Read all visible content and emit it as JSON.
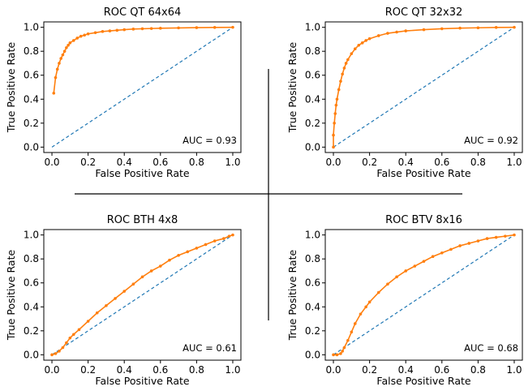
{
  "chart_data": [
    {
      "type": "line",
      "title": "ROC QT 64x64",
      "xlabel": "False Positive Rate",
      "ylabel": "True Positive Rate",
      "xlim": [
        0,
        1
      ],
      "ylim": [
        0,
        1
      ],
      "xticks": [
        "0.0",
        "0.2",
        "0.4",
        "0.6",
        "0.8",
        "1.0"
      ],
      "yticks": [
        "0.0",
        "0.2",
        "0.4",
        "0.6",
        "0.8",
        "1.0"
      ],
      "annotation": "AUC = 0.93",
      "colors": {
        "roc": "#ff7f0e",
        "chance": "#1f77b4"
      },
      "roc": {
        "x": [
          0.01,
          0.02,
          0.03,
          0.04,
          0.05,
          0.06,
          0.07,
          0.08,
          0.09,
          0.1,
          0.12,
          0.14,
          0.16,
          0.18,
          0.2,
          0.24,
          0.28,
          0.32,
          0.36,
          0.4,
          0.45,
          0.5,
          0.55,
          0.6,
          0.7,
          0.8,
          0.9,
          1.0
        ],
        "y": [
          0.45,
          0.58,
          0.65,
          0.7,
          0.74,
          0.77,
          0.8,
          0.83,
          0.85,
          0.87,
          0.89,
          0.91,
          0.925,
          0.935,
          0.945,
          0.955,
          0.965,
          0.97,
          0.975,
          0.98,
          0.985,
          0.988,
          0.99,
          0.992,
          0.995,
          0.997,
          0.999,
          1.0
        ]
      },
      "chance": {
        "x": [
          0,
          1
        ],
        "y": [
          0,
          1
        ]
      }
    },
    {
      "type": "line",
      "title": "ROC QT 32x32",
      "xlabel": "False Positive Rate",
      "ylabel": "True Positive Rate",
      "xlim": [
        0,
        1
      ],
      "ylim": [
        0,
        1
      ],
      "xticks": [
        "0.0",
        "0.2",
        "0.4",
        "0.6",
        "0.8",
        "1.0"
      ],
      "yticks": [
        "0.0",
        "0.2",
        "0.4",
        "0.6",
        "0.8",
        "1.0"
      ],
      "annotation": "AUC = 0.92",
      "colors": {
        "roc": "#ff7f0e",
        "chance": "#1f77b4"
      },
      "roc": {
        "x": [
          0.0,
          0.0,
          0.005,
          0.01,
          0.015,
          0.02,
          0.03,
          0.04,
          0.05,
          0.06,
          0.07,
          0.08,
          0.1,
          0.12,
          0.14,
          0.16,
          0.18,
          0.2,
          0.25,
          0.3,
          0.35,
          0.4,
          0.5,
          0.6,
          0.7,
          0.8,
          0.9,
          1.0
        ],
        "y": [
          0.0,
          0.1,
          0.2,
          0.28,
          0.35,
          0.4,
          0.48,
          0.55,
          0.61,
          0.66,
          0.7,
          0.73,
          0.78,
          0.82,
          0.85,
          0.87,
          0.89,
          0.905,
          0.93,
          0.95,
          0.96,
          0.97,
          0.98,
          0.988,
          0.993,
          0.996,
          0.999,
          1.0
        ]
      },
      "chance": {
        "x": [
          0,
          1
        ],
        "y": [
          0,
          1
        ]
      }
    },
    {
      "type": "line",
      "title": "ROC BTH 4x8",
      "xlabel": "False Positive Rate",
      "ylabel": "True Positive Rate",
      "xlim": [
        0,
        1
      ],
      "ylim": [
        0,
        1
      ],
      "xticks": [
        "0.0",
        "0.2",
        "0.4",
        "0.6",
        "0.8",
        "1.0"
      ],
      "yticks": [
        "0.0",
        "0.2",
        "0.4",
        "0.6",
        "0.8",
        "1.0"
      ],
      "annotation": "AUC = 0.61",
      "colors": {
        "roc": "#ff7f0e",
        "chance": "#1f77b4"
      },
      "roc": {
        "x": [
          0.0,
          0.02,
          0.04,
          0.06,
          0.08,
          0.1,
          0.12,
          0.15,
          0.2,
          0.25,
          0.3,
          0.35,
          0.4,
          0.45,
          0.5,
          0.55,
          0.6,
          0.65,
          0.7,
          0.75,
          0.8,
          0.85,
          0.9,
          0.95,
          0.98,
          1.0
        ],
        "y": [
          0.0,
          0.01,
          0.03,
          0.06,
          0.1,
          0.14,
          0.17,
          0.21,
          0.28,
          0.35,
          0.41,
          0.47,
          0.53,
          0.59,
          0.65,
          0.7,
          0.74,
          0.79,
          0.83,
          0.86,
          0.89,
          0.92,
          0.95,
          0.97,
          0.99,
          1.0
        ]
      },
      "chance": {
        "x": [
          0,
          1
        ],
        "y": [
          0,
          1
        ]
      }
    },
    {
      "type": "line",
      "title": "ROC BTV 8x16",
      "xlabel": "False Positive Rate",
      "ylabel": "True Positive Rate",
      "xlim": [
        0,
        1
      ],
      "ylim": [
        0,
        1
      ],
      "xticks": [
        "0.0",
        "0.2",
        "0.4",
        "0.6",
        "0.8",
        "1.0"
      ],
      "yticks": [
        "0.0",
        "0.2",
        "0.4",
        "0.6",
        "0.8",
        "1.0"
      ],
      "annotation": "AUC = 0.68",
      "colors": {
        "roc": "#ff7f0e",
        "chance": "#1f77b4"
      },
      "roc": {
        "x": [
          0.0,
          0.02,
          0.04,
          0.05,
          0.06,
          0.08,
          0.1,
          0.12,
          0.15,
          0.18,
          0.2,
          0.25,
          0.3,
          0.35,
          0.4,
          0.45,
          0.5,
          0.55,
          0.6,
          0.65,
          0.7,
          0.75,
          0.8,
          0.85,
          0.9,
          0.95,
          1.0
        ],
        "y": [
          0.0,
          0.0,
          0.01,
          0.03,
          0.06,
          0.12,
          0.19,
          0.26,
          0.34,
          0.4,
          0.44,
          0.52,
          0.59,
          0.65,
          0.7,
          0.74,
          0.78,
          0.82,
          0.85,
          0.88,
          0.91,
          0.93,
          0.95,
          0.97,
          0.98,
          0.99,
          1.0
        ]
      },
      "chance": {
        "x": [
          0,
          1
        ],
        "y": [
          0,
          1
        ]
      }
    }
  ]
}
